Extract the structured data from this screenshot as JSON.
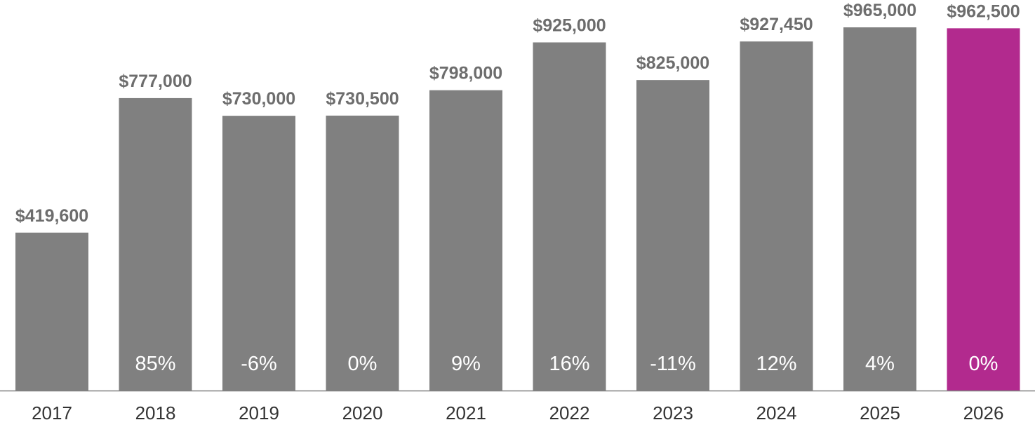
{
  "chart_data": {
    "type": "bar",
    "title": "",
    "xlabel": "",
    "ylabel": "",
    "categories": [
      "2017",
      "2018",
      "2019",
      "2020",
      "2021",
      "2022",
      "2023",
      "2024",
      "2025",
      "2026"
    ],
    "values": [
      419600,
      777000,
      730000,
      730500,
      798000,
      925000,
      825000,
      927450,
      965000,
      962500
    ],
    "value_labels": [
      "$419,600",
      "$777,000",
      "$730,000",
      "$730,500",
      "$798,000",
      "$925,000",
      "$825,000",
      "$927,450",
      "$965,000",
      "$962,500"
    ],
    "change_labels": [
      "",
      "85%",
      "-6%",
      "0%",
      "9%",
      "16%",
      "-11%",
      "12%",
      "4%",
      "0%"
    ],
    "ylim": [
      0,
      965000
    ],
    "grid": false,
    "colors": {
      "bar": "#808080",
      "highlight": "#b22a8e",
      "axis": "#808080"
    },
    "highlight_index": 9
  }
}
